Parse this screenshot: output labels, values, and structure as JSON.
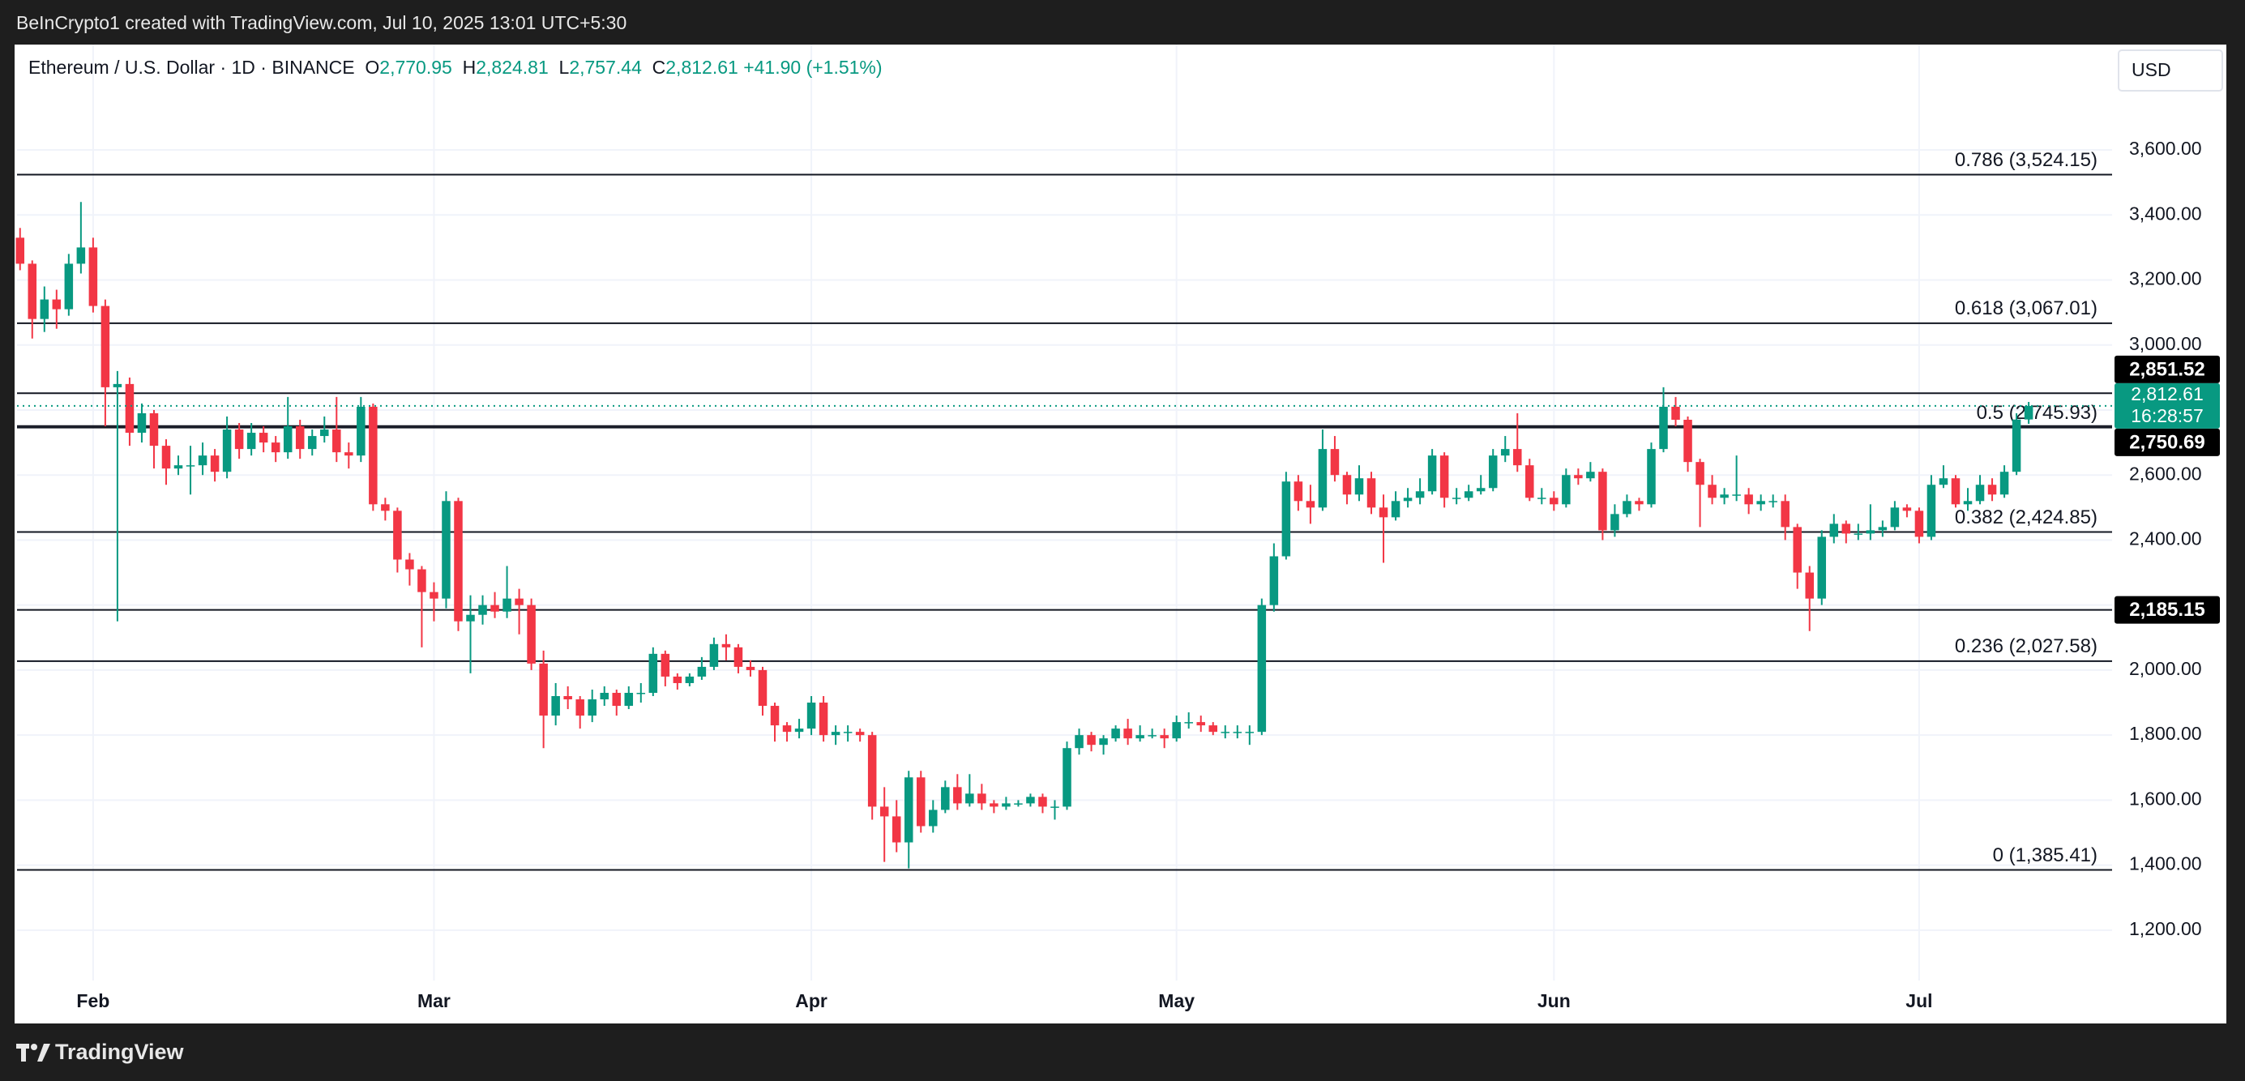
{
  "top_bar": {
    "text": "BeInCrypto1 created with TradingView.com, Jul 10, 2025 13:01 UTC+5:30"
  },
  "footer": {
    "brand": "TradingView"
  },
  "chart_data": {
    "type": "candlestick",
    "legend": {
      "symbol": "Ethereum / U.S. Dollar · 1D · BINANCE",
      "items": [
        {
          "key": "O",
          "text": "2,770.95"
        },
        {
          "key": "H",
          "text": "2,824.81"
        },
        {
          "key": "L",
          "text": "2,757.44"
        },
        {
          "key": "C",
          "text": "2,812.61"
        }
      ],
      "change": "+41.90 (+1.51%)"
    },
    "currency": "USD",
    "open": [
      3330,
      3250,
      3080,
      3140,
      3110,
      3250,
      3300,
      3120,
      2870,
      2880,
      2730,
      2790,
      2690,
      2620,
      2630,
      2630,
      2660,
      2610,
      2740,
      2680,
      2730,
      2700,
      2670,
      2750,
      2680,
      2720,
      2740,
      2670,
      2660,
      2810,
      2510,
      2490,
      2340,
      2310,
      2240,
      2220,
      2520,
      2150,
      2170,
      2200,
      2180,
      2220,
      2200,
      2020,
      1860,
      1920,
      1910,
      1860,
      1910,
      1930,
      1890,
      1930,
      1930,
      2050,
      1980,
      1960,
      1980,
      2010,
      2080,
      2070,
      2010,
      2000,
      1890,
      1830,
      1810,
      1820,
      1900,
      1800,
      1810,
      1810,
      1800,
      1580,
      1550,
      1470,
      1670,
      1520,
      1570,
      1640,
      1590,
      1620,
      1590,
      1580,
      1590,
      1590,
      1610,
      1580,
      1580,
      1760,
      1800,
      1770,
      1790,
      1820,
      1790,
      1800,
      1800,
      1790,
      1840,
      1840,
      1830,
      1810,
      1810,
      1810,
      1810,
      2200,
      2350,
      2580,
      2520,
      2500,
      2680,
      2600,
      2540,
      2590,
      2500,
      2470,
      2520,
      2530,
      2550,
      2660,
      2530,
      2530,
      2550,
      2560,
      2660,
      2680,
      2630,
      2530,
      2530,
      2510,
      2600,
      2590,
      2610,
      2430,
      2480,
      2520,
      2510,
      2680,
      2810,
      2770,
      2640,
      2570,
      2530,
      2540,
      2540,
      2510,
      2520,
      2520,
      2440,
      2300,
      2220,
      2410,
      2450,
      2420,
      2420,
      2430,
      2440,
      2500,
      2490,
      2410,
      2570,
      2590,
      2510,
      2520,
      2570,
      2540,
      2610,
      2770.95
    ],
    "high": [
      3360,
      3260,
      3180,
      3170,
      3280,
      3440,
      3330,
      3140,
      2920,
      2900,
      2820,
      2800,
      2710,
      2660,
      2690,
      2700,
      2680,
      2780,
      2760,
      2760,
      2750,
      2720,
      2840,
      2770,
      2740,
      2780,
      2840,
      2700,
      2840,
      2820,
      2530,
      2500,
      2360,
      2320,
      2270,
      2550,
      2530,
      2230,
      2230,
      2240,
      2320,
      2250,
      2220,
      2060,
      1960,
      1950,
      1920,
      1940,
      1950,
      1940,
      1950,
      1960,
      2070,
      2060,
      1990,
      1990,
      2040,
      2100,
      2110,
      2080,
      2030,
      2010,
      1900,
      1840,
      1850,
      1920,
      1920,
      1830,
      1830,
      1820,
      1810,
      1640,
      1600,
      1690,
      1690,
      1600,
      1660,
      1680,
      1680,
      1650,
      1600,
      1610,
      1600,
      1620,
      1620,
      1600,
      1780,
      1820,
      1810,
      1800,
      1830,
      1850,
      1830,
      1820,
      1820,
      1860,
      1870,
      1860,
      1840,
      1830,
      1830,
      1830,
      2220,
      2390,
      2610,
      2600,
      2570,
      2740,
      2720,
      2610,
      2630,
      2610,
      2540,
      2550,
      2560,
      2590,
      2680,
      2670,
      2560,
      2570,
      2600,
      2680,
      2720,
      2790,
      2650,
      2560,
      2550,
      2620,
      2620,
      2640,
      2620,
      2510,
      2540,
      2530,
      2700,
      2870,
      2840,
      2780,
      2650,
      2600,
      2560,
      2660,
      2560,
      2540,
      2540,
      2540,
      2450,
      2320,
      2430,
      2480,
      2460,
      2450,
      2510,
      2460,
      2520,
      2510,
      2500,
      2600,
      2630,
      2600,
      2560,
      2600,
      2590,
      2630,
      2790,
      2824.81
    ],
    "low": [
      3230,
      3020,
      3040,
      3050,
      3090,
      3220,
      3100,
      2750,
      2150,
      2690,
      2700,
      2620,
      2570,
      2600,
      2540,
      2600,
      2580,
      2590,
      2650,
      2660,
      2670,
      2640,
      2650,
      2650,
      2660,
      2700,
      2640,
      2620,
      2640,
      2490,
      2460,
      2300,
      2260,
      2070,
      2150,
      2190,
      2120,
      1990,
      2140,
      2160,
      2160,
      2110,
      2000,
      1760,
      1830,
      1880,
      1820,
      1840,
      1890,
      1860,
      1880,
      1900,
      1920,
      1950,
      1940,
      1950,
      1970,
      2000,
      2030,
      1990,
      1980,
      1860,
      1780,
      1780,
      1790,
      1800,
      1780,
      1770,
      1780,
      1780,
      1540,
      1410,
      1440,
      1390,
      1500,
      1500,
      1560,
      1570,
      1580,
      1570,
      1560,
      1570,
      1580,
      1580,
      1560,
      1540,
      1570,
      1740,
      1750,
      1740,
      1780,
      1770,
      1780,
      1790,
      1760,
      1780,
      1820,
      1810,
      1800,
      1790,
      1790,
      1770,
      1800,
      2180,
      2340,
      2490,
      2450,
      2490,
      2580,
      2510,
      2520,
      2480,
      2330,
      2460,
      2500,
      2510,
      2540,
      2500,
      2510,
      2520,
      2540,
      2550,
      2640,
      2610,
      2520,
      2510,
      2490,
      2500,
      2570,
      2580,
      2400,
      2410,
      2470,
      2490,
      2500,
      2670,
      2750,
      2610,
      2440,
      2510,
      2510,
      2520,
      2480,
      2490,
      2500,
      2400,
      2250,
      2120,
      2200,
      2390,
      2390,
      2400,
      2400,
      2410,
      2430,
      2470,
      2390,
      2400,
      2560,
      2500,
      2490,
      2510,
      2520,
      2530,
      2600,
      2757.44
    ],
    "close": [
      3250,
      3080,
      3140,
      3110,
      3250,
      3300,
      3120,
      2870,
      2880,
      2730,
      2790,
      2690,
      2620,
      2630,
      2630,
      2660,
      2610,
      2740,
      2680,
      2730,
      2700,
      2670,
      2750,
      2680,
      2720,
      2740,
      2670,
      2660,
      2810,
      2510,
      2490,
      2340,
      2310,
      2240,
      2220,
      2520,
      2150,
      2170,
      2200,
      2180,
      2220,
      2200,
      2020,
      1860,
      1920,
      1910,
      1860,
      1910,
      1930,
      1890,
      1930,
      1930,
      2050,
      1980,
      1960,
      1980,
      2010,
      2080,
      2070,
      2010,
      2000,
      1890,
      1830,
      1810,
      1820,
      1900,
      1800,
      1810,
      1810,
      1800,
      1580,
      1550,
      1470,
      1670,
      1520,
      1570,
      1640,
      1590,
      1620,
      1590,
      1580,
      1590,
      1590,
      1610,
      1580,
      1580,
      1760,
      1800,
      1770,
      1790,
      1820,
      1790,
      1800,
      1800,
      1790,
      1840,
      1840,
      1830,
      1810,
      1810,
      1810,
      1810,
      2200,
      2350,
      2580,
      2520,
      2500,
      2680,
      2600,
      2540,
      2590,
      2500,
      2470,
      2520,
      2530,
      2550,
      2660,
      2530,
      2530,
      2550,
      2560,
      2660,
      2680,
      2630,
      2530,
      2530,
      2510,
      2600,
      2590,
      2610,
      2430,
      2480,
      2520,
      2510,
      2680,
      2810,
      2770,
      2640,
      2570,
      2530,
      2540,
      2540,
      2510,
      2520,
      2520,
      2440,
      2300,
      2220,
      2410,
      2450,
      2420,
      2420,
      2430,
      2440,
      2500,
      2490,
      2410,
      2570,
      2590,
      2510,
      2520,
      2570,
      2540,
      2610,
      2770.71,
      2812.61
    ],
    "up_color": "#089981",
    "down_color": "#f23645",
    "xlim": [
      -0.25,
      171.85
    ],
    "xticks": [
      {
        "value": 6,
        "label": "Feb"
      },
      {
        "value": 34,
        "label": "Mar"
      },
      {
        "value": 65,
        "label": "Apr"
      },
      {
        "value": 95,
        "label": "May"
      },
      {
        "value": 126,
        "label": "Jun"
      },
      {
        "value": 156,
        "label": "Jul"
      }
    ],
    "ylim": [
      913,
      3787
    ],
    "yticks": [
      {
        "value": 1200,
        "label": "1,200.00"
      },
      {
        "value": 1400,
        "label": "1,400.00"
      },
      {
        "value": 1600,
        "label": "1,600.00"
      },
      {
        "value": 1800,
        "label": "1,800.00"
      },
      {
        "value": 2000,
        "label": "2,000.00"
      },
      {
        "value": 2200,
        "label": "2,200.00"
      },
      {
        "value": 2400,
        "label": "2,400.00"
      },
      {
        "value": 2600,
        "label": "2,600.00"
      },
      {
        "value": 2800,
        "label": "2,800.00"
      },
      {
        "value": 3000,
        "label": "3,000.00"
      },
      {
        "value": 3200,
        "label": "3,200.00"
      },
      {
        "value": 3400,
        "label": "3,400.00"
      },
      {
        "value": 3600,
        "label": "3,600.00"
      }
    ],
    "grid": true,
    "fib_levels": [
      {
        "value": 3524.15,
        "label": "0.786 (3,524.15)"
      },
      {
        "value": 3067.01,
        "label": "0.618 (3,067.01)"
      },
      {
        "value": 2745.93,
        "label": "0.5 (2,745.93)"
      },
      {
        "value": 2424.85,
        "label": "0.382 (2,424.85)"
      },
      {
        "value": 2027.58,
        "label": "0.236 (2,027.58)"
      },
      {
        "value": 1385.41,
        "label": "0 (1,385.41)"
      }
    ],
    "price_lines": [
      {
        "value": 2851.52,
        "label": "2,851.52"
      },
      {
        "value": 2750.69,
        "label": "2,750.69"
      },
      {
        "value": 2185.15,
        "label": "2,185.15"
      }
    ],
    "last_price": {
      "value": 2812.61,
      "label": "2,812.61",
      "countdown": "16:28:57",
      "color": "#089981"
    }
  }
}
